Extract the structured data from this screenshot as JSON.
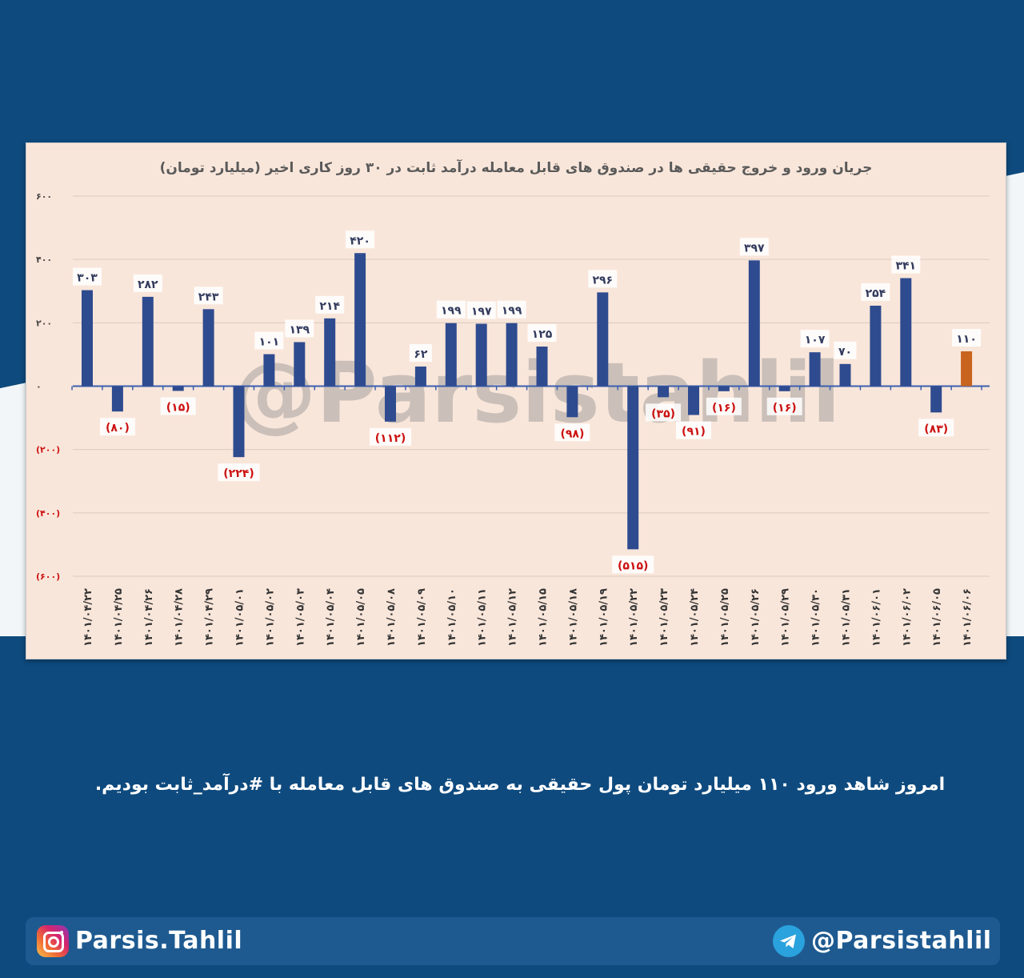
{
  "colors": {
    "background": "#0e4a7e",
    "panel": "#f9e6da",
    "bar_positive": "#2f4b8f",
    "bar_negative": "#2f4b8f",
    "bar_highlight": "#c8641e",
    "label_negative": "#cc1111",
    "label_positive": "#333b5e"
  },
  "chart_data": {
    "type": "bar",
    "title": "جریان ورود و خروج حقیقی ها در صندوق های قابل معامله درآمد ثابت در ۳۰ روز کاری اخیر (میلیارد تومان)",
    "categories": [
      "۱۴۰۱/۰۴/۲۲",
      "۱۴۰۱/۰۴/۲۵",
      "۱۴۰۱/۰۴/۲۶",
      "۱۴۰۱/۰۴/۲۸",
      "۱۴۰۱/۰۴/۲۹",
      "۱۴۰۱/۰۵/۰۱",
      "۱۴۰۱/۰۵/۰۲",
      "۱۴۰۱/۰۵/۰۳",
      "۱۴۰۱/۰۵/۰۴",
      "۱۴۰۱/۰۵/۰۵",
      "۱۴۰۱/۰۵/۰۸",
      "۱۴۰۱/۰۵/۰۹",
      "۱۴۰۱/۰۵/۱۰",
      "۱۴۰۱/۰۵/۱۱",
      "۱۴۰۱/۰۵/۱۲",
      "۱۴۰۱/۰۵/۱۵",
      "۱۴۰۱/۰۵/۱۸",
      "۱۴۰۱/۰۵/۱۹",
      "۱۴۰۱/۰۵/۲۲",
      "۱۴۰۱/۰۵/۲۳",
      "۱۴۰۱/۰۵/۲۴",
      "۱۴۰۱/۰۵/۲۵",
      "۱۴۰۱/۰۵/۲۶",
      "۱۴۰۱/۰۵/۲۹",
      "۱۴۰۱/۰۵/۳۰",
      "۱۴۰۱/۰۵/۳۱",
      "۱۴۰۱/۰۶/۰۱",
      "۱۴۰۱/۰۶/۰۲",
      "۱۴۰۱/۰۶/۰۵",
      "۱۴۰۱/۰۶/۰۶"
    ],
    "values": [
      303,
      -80,
      282,
      -15,
      243,
      -224,
      101,
      139,
      214,
      420,
      -112,
      62,
      199,
      197,
      199,
      125,
      -98,
      296,
      -515,
      -35,
      -91,
      -16,
      397,
      -16,
      107,
      70,
      254,
      341,
      -83,
      110
    ],
    "data_labels": [
      "۳۰۳",
      "(۸۰)",
      "۲۸۲",
      "(۱۵)",
      "۲۴۳",
      "(۲۲۴)",
      "۱۰۱",
      "۱۳۹",
      "۲۱۴",
      "۴۲۰",
      "(۱۱۲)",
      "۶۲",
      "۱۹۹",
      "۱۹۷",
      "۱۹۹",
      "۱۲۵",
      "(۹۸)",
      "۲۹۶",
      "(۵۱۵)",
      "(۳۵)",
      "(۹۱)",
      "(۱۶)",
      "۳۹۷",
      "(۱۶)",
      "۱۰۷",
      "۷۰",
      "۲۵۴",
      "۳۴۱",
      "(۸۳)",
      "۱۱۰"
    ],
    "highlight_index": 29,
    "ylim": [
      -600,
      600
    ],
    "yticks": [
      600,
      400,
      200,
      0,
      -200,
      -400,
      -600
    ],
    "ytick_labels": [
      "۶۰۰",
      "۴۰۰",
      "۲۰۰",
      "۰",
      "(۲۰۰)",
      "(۴۰۰)",
      "(۶۰۰)"
    ],
    "grid": true,
    "xlabel": "",
    "ylabel": ""
  },
  "watermark": "@Parsistahlil",
  "caption": "امروز شاهد ورود ۱۱۰ میلیارد تومان پول حقیقی  به صندوق های قابل معامله با #درآمد_ثابت بودیم.",
  "footer": {
    "instagram_handle": "Parsis.Tahlil",
    "telegram_handle": "@Parsistahlil",
    "instagram_icon": "instagram-icon",
    "telegram_icon": "telegram-icon"
  }
}
